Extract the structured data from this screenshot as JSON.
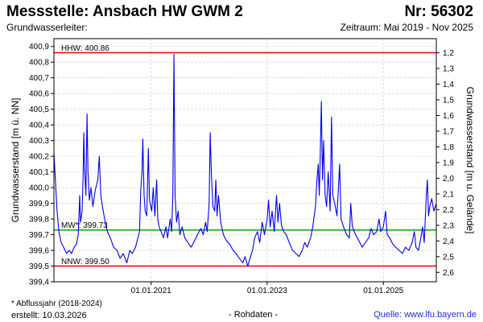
{
  "header": {
    "title": "Messstelle: Ansbach HW GWM 2",
    "station_number": "Nr: 56302",
    "aquifer": "Grundwasserleiter:",
    "period": "Zeitraum: Mai 2019 - Nov 2025"
  },
  "footer": {
    "footnote": "* Abflussjahr (2018-2024)",
    "created": "erstellt:  10.03.2026",
    "raw_data": "- Rohdaten -",
    "source": "Quelle: www.lfu.bayern.de"
  },
  "chart_data": {
    "type": "line",
    "ylabel_left": "Grundwasserstand [m ü. NN]",
    "ylabel_right": "Grundwasserstand [m u. Gelände]",
    "ylim": [
      399.4,
      400.95
    ],
    "yticks_left": [
      "399,4",
      "399,5",
      "399,6",
      "399,7",
      "399,8",
      "399,9",
      "400,0",
      "400,1",
      "400,2",
      "400,3",
      "400,4",
      "400,5",
      "400,6",
      "400,7",
      "400,8",
      "400,9"
    ],
    "yticks_right": [
      "2,6",
      "2,5",
      "2,4",
      "2,3",
      "2,2",
      "2,1",
      "2,0",
      "1,9",
      "1,8",
      "1,7",
      "1,6",
      "1,5",
      "1,4",
      "1,3",
      "1,2"
    ],
    "xrange": [
      "2019-05-01",
      "2025-11-30"
    ],
    "xticks": [
      {
        "date": "2021-01-01",
        "label": "01.01.2021"
      },
      {
        "date": "2023-01-01",
        "label": "01.01.2023"
      },
      {
        "date": "2025-01-01",
        "label": "01.01.2025"
      }
    ],
    "grid": true,
    "colors": {
      "series": "#0000ee",
      "max_line": "#ee0000",
      "min_line": "#ee0000",
      "mean_line": "#00aa00",
      "grid": "#c8c8c8"
    },
    "reference_lines": [
      {
        "key": "hhw",
        "label": "HHW: 400.86",
        "value": 400.86,
        "color": "#ee0000"
      },
      {
        "key": "mw",
        "label": "MW*: 399.73",
        "value": 399.73,
        "color": "#00aa00"
      },
      {
        "key": "nnw",
        "label": "NNW: 399.50",
        "value": 399.5,
        "color": "#ee0000"
      }
    ],
    "series": [
      {
        "points": [
          [
            "2019-05-01",
            400.22
          ],
          [
            "2019-05-10",
            400.05
          ],
          [
            "2019-05-20",
            399.86
          ],
          [
            "2019-06-01",
            399.72
          ],
          [
            "2019-06-15",
            399.65
          ],
          [
            "2019-07-01",
            399.62
          ],
          [
            "2019-07-20",
            399.58
          ],
          [
            "2019-08-05",
            399.6
          ],
          [
            "2019-08-20",
            399.58
          ],
          [
            "2019-09-05",
            399.62
          ],
          [
            "2019-09-20",
            399.64
          ],
          [
            "2019-10-01",
            399.7
          ],
          [
            "2019-10-10",
            399.95
          ],
          [
            "2019-10-15",
            399.78
          ],
          [
            "2019-10-25",
            399.85
          ],
          [
            "2019-11-01",
            400.08
          ],
          [
            "2019-11-05",
            400.35
          ],
          [
            "2019-11-10",
            400.12
          ],
          [
            "2019-11-18",
            399.95
          ],
          [
            "2019-11-25",
            400.47
          ],
          [
            "2019-12-01",
            400.1
          ],
          [
            "2019-12-10",
            399.92
          ],
          [
            "2019-12-20",
            400.0
          ],
          [
            "2020-01-01",
            399.88
          ],
          [
            "2020-01-15",
            399.98
          ],
          [
            "2020-02-01",
            400.05
          ],
          [
            "2020-02-10",
            400.2
          ],
          [
            "2020-02-20",
            399.95
          ],
          [
            "2020-03-01",
            399.88
          ],
          [
            "2020-03-15",
            399.8
          ],
          [
            "2020-04-01",
            399.72
          ],
          [
            "2020-04-20",
            399.68
          ],
          [
            "2020-05-10",
            399.62
          ],
          [
            "2020-06-01",
            399.6
          ],
          [
            "2020-06-20",
            399.55
          ],
          [
            "2020-07-10",
            399.58
          ],
          [
            "2020-08-01",
            399.52
          ],
          [
            "2020-08-20",
            399.6
          ],
          [
            "2020-09-05",
            399.58
          ],
          [
            "2020-09-25",
            399.62
          ],
          [
            "2020-10-10",
            399.68
          ],
          [
            "2020-10-20",
            399.72
          ],
          [
            "2020-10-28",
            399.98
          ],
          [
            "2020-11-05",
            400.1
          ],
          [
            "2020-11-10",
            400.31
          ],
          [
            "2020-11-18",
            399.95
          ],
          [
            "2020-11-25",
            399.85
          ],
          [
            "2020-12-05",
            399.82
          ],
          [
            "2020-12-15",
            400.25
          ],
          [
            "2020-12-22",
            399.92
          ],
          [
            "2021-01-05",
            399.85
          ],
          [
            "2021-01-15",
            400.0
          ],
          [
            "2021-01-25",
            399.82
          ],
          [
            "2021-02-05",
            400.05
          ],
          [
            "2021-02-12",
            399.8
          ],
          [
            "2021-02-20",
            399.75
          ],
          [
            "2021-03-05",
            399.72
          ],
          [
            "2021-03-20",
            399.68
          ],
          [
            "2021-04-05",
            399.75
          ],
          [
            "2021-04-15",
            399.68
          ],
          [
            "2021-05-01",
            399.8
          ],
          [
            "2021-05-10",
            399.72
          ],
          [
            "2021-05-18",
            399.95
          ],
          [
            "2021-05-25",
            400.85
          ],
          [
            "2021-06-01",
            399.95
          ],
          [
            "2021-06-10",
            399.78
          ],
          [
            "2021-06-20",
            399.85
          ],
          [
            "2021-07-01",
            399.7
          ],
          [
            "2021-07-15",
            399.75
          ],
          [
            "2021-08-01",
            399.68
          ],
          [
            "2021-08-20",
            399.65
          ],
          [
            "2021-09-10",
            399.62
          ],
          [
            "2021-10-01",
            399.66
          ],
          [
            "2021-10-20",
            399.7
          ],
          [
            "2021-11-10",
            399.74
          ],
          [
            "2021-11-25",
            399.7
          ],
          [
            "2021-12-10",
            399.78
          ],
          [
            "2021-12-20",
            399.72
          ],
          [
            "2022-01-01",
            399.9
          ],
          [
            "2022-01-08",
            400.35
          ],
          [
            "2022-01-15",
            400.1
          ],
          [
            "2022-01-25",
            399.88
          ],
          [
            "2022-02-05",
            399.85
          ],
          [
            "2022-02-12",
            400.05
          ],
          [
            "2022-02-20",
            399.82
          ],
          [
            "2022-03-01",
            399.95
          ],
          [
            "2022-03-15",
            399.78
          ],
          [
            "2022-04-01",
            399.7
          ],
          [
            "2022-04-20",
            399.66
          ],
          [
            "2022-05-10",
            399.64
          ],
          [
            "2022-06-01",
            399.6
          ],
          [
            "2022-06-20",
            399.58
          ],
          [
            "2022-07-10",
            399.55
          ],
          [
            "2022-08-01",
            399.52
          ],
          [
            "2022-08-15",
            399.56
          ],
          [
            "2022-09-01",
            399.5
          ],
          [
            "2022-09-15",
            399.55
          ],
          [
            "2022-10-01",
            399.6
          ],
          [
            "2022-10-15",
            399.68
          ],
          [
            "2022-11-01",
            399.72
          ],
          [
            "2022-11-15",
            399.65
          ],
          [
            "2022-12-01",
            399.78
          ],
          [
            "2022-12-15",
            399.7
          ],
          [
            "2023-01-01",
            399.8
          ],
          [
            "2023-01-10",
            399.92
          ],
          [
            "2023-01-20",
            399.75
          ],
          [
            "2023-02-01",
            399.85
          ],
          [
            "2023-02-15",
            399.72
          ],
          [
            "2023-03-01",
            399.95
          ],
          [
            "2023-03-10",
            399.78
          ],
          [
            "2023-03-20",
            399.9
          ],
          [
            "2023-04-01",
            399.76
          ],
          [
            "2023-04-15",
            399.72
          ],
          [
            "2023-05-01",
            399.7
          ],
          [
            "2023-05-20",
            399.65
          ],
          [
            "2023-06-10",
            399.6
          ],
          [
            "2023-07-01",
            399.58
          ],
          [
            "2023-07-20",
            399.56
          ],
          [
            "2023-08-10",
            399.6
          ],
          [
            "2023-08-25",
            399.65
          ],
          [
            "2023-09-10",
            399.62
          ],
          [
            "2023-10-01",
            399.68
          ],
          [
            "2023-10-15",
            399.75
          ],
          [
            "2023-11-01",
            399.88
          ],
          [
            "2023-11-10",
            400.05
          ],
          [
            "2023-11-18",
            400.15
          ],
          [
            "2023-11-25",
            399.95
          ],
          [
            "2023-12-01",
            400.2
          ],
          [
            "2023-12-08",
            400.55
          ],
          [
            "2023-12-15",
            400.05
          ],
          [
            "2023-12-22",
            400.3
          ],
          [
            "2024-01-01",
            399.95
          ],
          [
            "2024-01-10",
            399.88
          ],
          [
            "2024-01-20",
            400.1
          ],
          [
            "2024-02-01",
            399.85
          ],
          [
            "2024-02-10",
            400.45
          ],
          [
            "2024-02-18",
            399.95
          ],
          [
            "2024-03-01",
            399.9
          ],
          [
            "2024-03-15",
            399.82
          ],
          [
            "2024-04-01",
            400.15
          ],
          [
            "2024-04-10",
            399.8
          ],
          [
            "2024-04-25",
            399.75
          ],
          [
            "2024-05-15",
            399.7
          ],
          [
            "2024-06-01",
            399.68
          ],
          [
            "2024-06-10",
            399.9
          ],
          [
            "2024-06-20",
            399.75
          ],
          [
            "2024-07-10",
            399.7
          ],
          [
            "2024-08-01",
            399.66
          ],
          [
            "2024-08-20",
            399.62
          ],
          [
            "2024-09-10",
            399.65
          ],
          [
            "2024-10-01",
            399.68
          ],
          [
            "2024-10-15",
            399.74
          ],
          [
            "2024-11-01",
            399.7
          ],
          [
            "2024-11-20",
            399.72
          ],
          [
            "2024-12-05",
            399.8
          ],
          [
            "2024-12-15",
            399.72
          ],
          [
            "2025-01-01",
            399.75
          ],
          [
            "2025-01-15",
            399.85
          ],
          [
            "2025-01-25",
            399.7
          ],
          [
            "2025-02-10",
            399.68
          ],
          [
            "2025-03-01",
            399.64
          ],
          [
            "2025-03-20",
            399.62
          ],
          [
            "2025-04-10",
            399.6
          ],
          [
            "2025-05-01",
            399.58
          ],
          [
            "2025-05-20",
            399.62
          ],
          [
            "2025-06-10",
            399.6
          ],
          [
            "2025-07-01",
            399.65
          ],
          [
            "2025-07-15",
            399.72
          ],
          [
            "2025-07-25",
            399.62
          ],
          [
            "2025-08-10",
            399.6
          ],
          [
            "2025-08-25",
            399.68
          ],
          [
            "2025-09-05",
            399.75
          ],
          [
            "2025-09-15",
            399.65
          ],
          [
            "2025-09-28",
            399.95
          ],
          [
            "2025-10-05",
            400.05
          ],
          [
            "2025-10-12",
            399.82
          ],
          [
            "2025-10-20",
            399.88
          ],
          [
            "2025-11-01",
            399.93
          ],
          [
            "2025-11-15",
            399.85
          ],
          [
            "2025-11-30",
            399.9
          ]
        ]
      }
    ]
  }
}
